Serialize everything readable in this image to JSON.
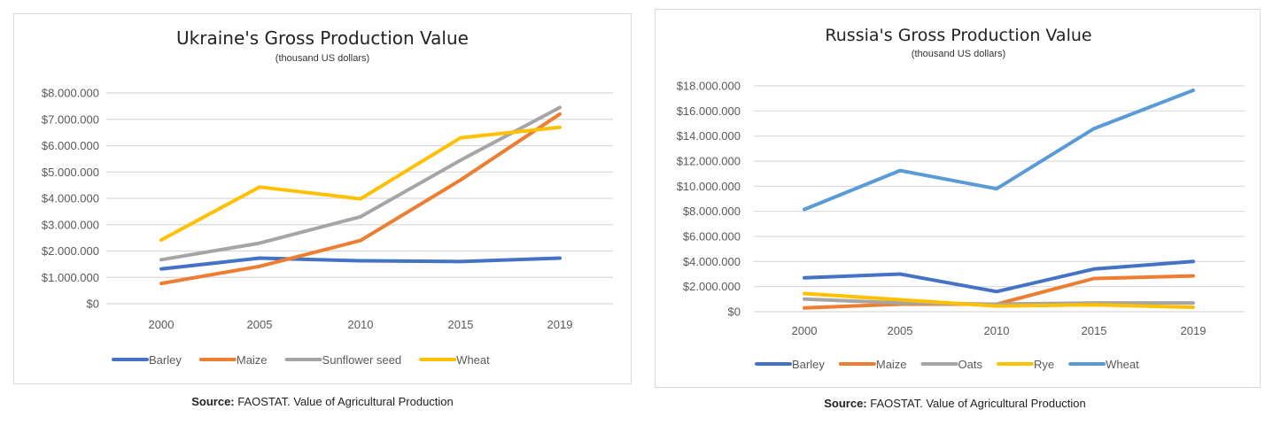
{
  "chart_data": [
    {
      "type": "line",
      "title": "Ukraine's Gross Production Value",
      "subtitle": "(thousand US dollars)",
      "xlabel": "",
      "ylabel": "",
      "categories": [
        "2000",
        "2005",
        "2010",
        "2015",
        "2019"
      ],
      "ylim": [
        0,
        8000000
      ],
      "yticks": [
        0,
        1000000,
        2000000,
        3000000,
        4000000,
        5000000,
        6000000,
        7000000,
        8000000
      ],
      "ytick_labels": [
        "$0",
        "$1.000.000",
        "$2.000.000",
        "$3.000.000",
        "$4.000.000",
        "$5.000.000",
        "$6.000.000",
        "$7.000.000",
        "$8.000.000"
      ],
      "grid": true,
      "legend_position": "bottom",
      "series": [
        {
          "name": "Barley",
          "color": "#4472c4",
          "values": [
            1320000,
            1730000,
            1630000,
            1600000,
            1730000
          ]
        },
        {
          "name": "Maize",
          "color": "#ed7d31",
          "values": [
            770000,
            1420000,
            2400000,
            4700000,
            7200000
          ]
        },
        {
          "name": "Sunflower seed",
          "color": "#a5a5a5",
          "values": [
            1670000,
            2300000,
            3300000,
            5450000,
            7450000
          ]
        },
        {
          "name": "Wheat",
          "color": "#ffc000",
          "values": [
            2420000,
            4430000,
            3980000,
            6300000,
            6700000
          ]
        }
      ]
    },
    {
      "type": "line",
      "title": "Russia's Gross Production Value",
      "subtitle": "(thousand US dollars)",
      "xlabel": "",
      "ylabel": "",
      "categories": [
        "2000",
        "2005",
        "2010",
        "2015",
        "2019"
      ],
      "ylim": [
        0,
        18000000
      ],
      "yticks": [
        0,
        2000000,
        4000000,
        6000000,
        8000000,
        10000000,
        12000000,
        14000000,
        16000000,
        18000000
      ],
      "ytick_labels": [
        "$0",
        "$2.000.000",
        "$4.000.000",
        "$6.000.000",
        "$8.000.000",
        "$10.000.000",
        "$12.000.000",
        "$14.000.000",
        "$16.000.000",
        "$18.000.000"
      ],
      "grid": true,
      "legend_position": "bottom",
      "series": [
        {
          "name": "Barley",
          "color": "#4472c4",
          "values": [
            2700000,
            3000000,
            1600000,
            3400000,
            4000000
          ]
        },
        {
          "name": "Maize",
          "color": "#ed7d31",
          "values": [
            300000,
            600000,
            600000,
            2650000,
            2850000
          ]
        },
        {
          "name": "Oats",
          "color": "#a5a5a5",
          "values": [
            1000000,
            700000,
            600000,
            700000,
            700000
          ]
        },
        {
          "name": "Rye",
          "color": "#ffc000",
          "values": [
            1450000,
            950000,
            450000,
            550000,
            350000
          ]
        },
        {
          "name": "Wheat",
          "color": "#5b9bd5",
          "values": [
            8150000,
            11250000,
            9800000,
            14600000,
            17650000
          ]
        }
      ]
    }
  ],
  "sources": [
    {
      "label": "Source:",
      "text": " FAOSTAT. Value of Agricultural Production"
    },
    {
      "label": "Source:",
      "text": " FAOSTAT. Value of Agricultural Production"
    }
  ]
}
